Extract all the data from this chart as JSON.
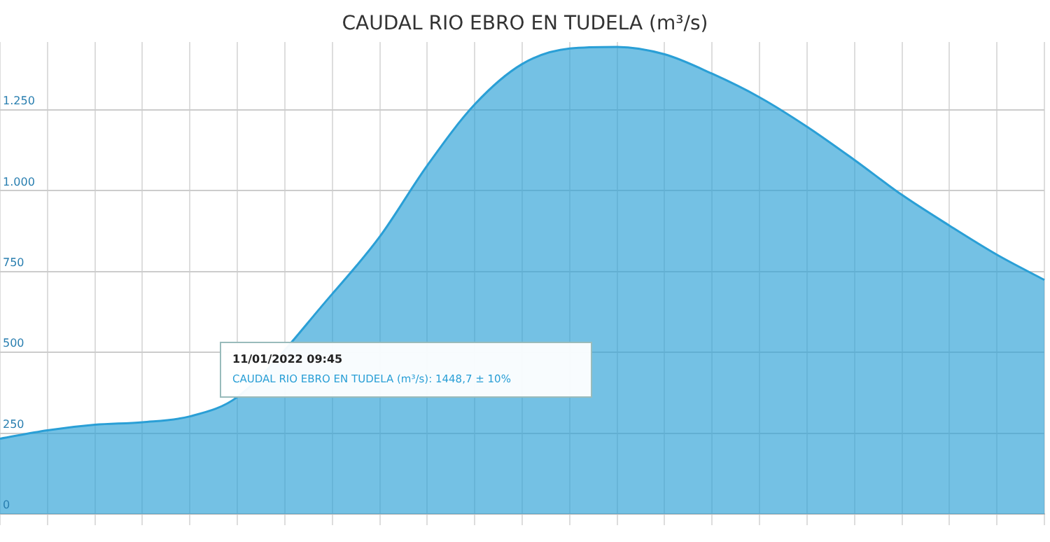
{
  "chart_data": {
    "type": "area",
    "title": "CAUDAL RIO EBRO EN TUDELA (m³/s)",
    "categories": [
      null,
      null,
      null,
      null,
      null,
      null,
      null,
      null,
      null,
      null,
      null,
      null,
      null,
      null,
      null,
      null,
      null,
      null,
      null,
      null,
      null,
      null,
      null
    ],
    "series": [
      {
        "color": "#2a9fd6",
        "values": [
          233,
          259,
          276,
          284,
          302,
          362,
          null,
          681,
          858,
          1078,
          1267,
          1392,
          1440,
          1445,
          1422,
          1362,
          1289,
          1198,
          1095,
          987,
          892,
          802,
          724
        ]
      }
    ],
    "ylim": [
      0,
      1460
    ],
    "yticks": [
      0,
      250,
      500,
      750,
      {
        "value": 1000,
        "label": "1.000"
      },
      {
        "value": 1250,
        "label": "1.250"
      }
    ],
    "grid": true,
    "legend": false,
    "marker": "none",
    "annotations": [
      "11/01/2022 09:45",
      "CAUDAL RIO EBRO EN TUDELA (m³/s): 1448,7 ± 10%"
    ]
  }
}
